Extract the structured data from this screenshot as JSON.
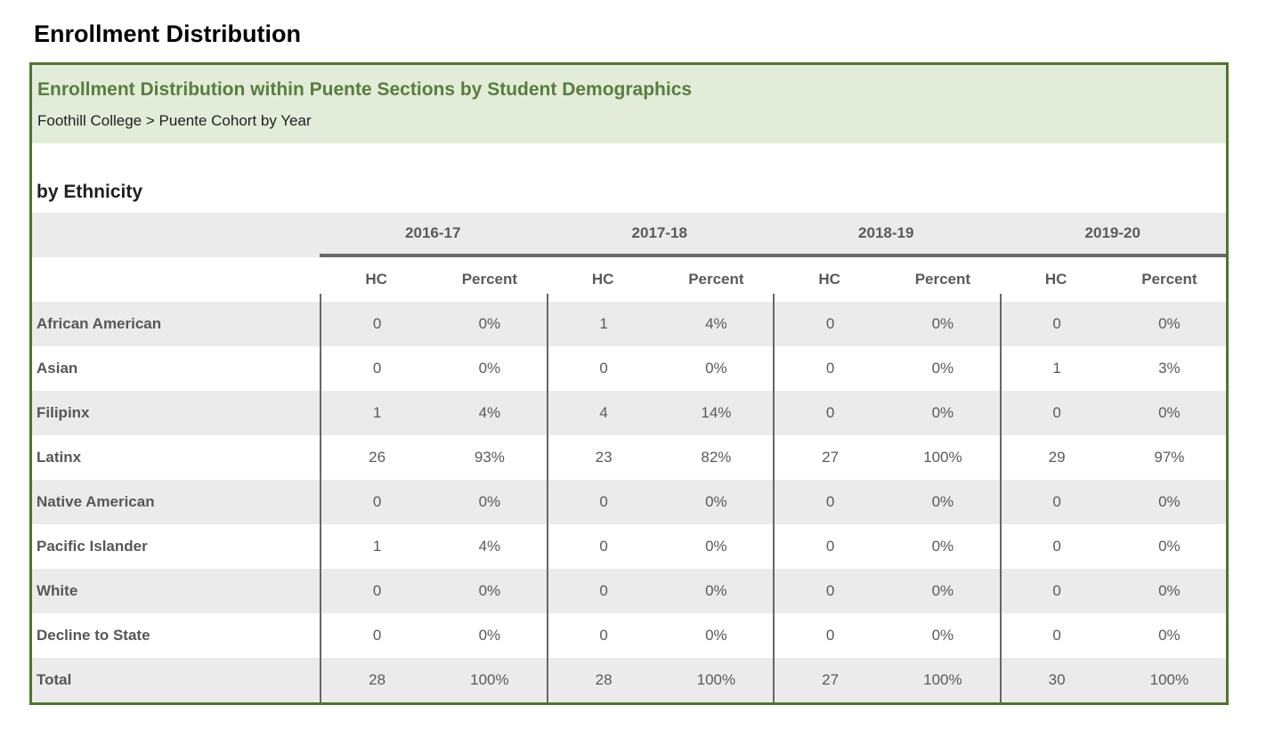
{
  "page_title": "Enrollment Distribution",
  "report": {
    "title": "Enrollment Distribution within Puente Sections by Student Demographics",
    "breadcrumb": "Foothill College > Puente Cohort by Year",
    "section_title": "by Ethnicity"
  },
  "table": {
    "year_groups": [
      "2016-17",
      "2017-18",
      "2018-19",
      "2019-20"
    ],
    "sub_headers": [
      "HC",
      "Percent"
    ],
    "rows": [
      {
        "label": "African American",
        "values": [
          "0",
          "0%",
          "1",
          "4%",
          "0",
          "0%",
          "0",
          "0%"
        ]
      },
      {
        "label": "Asian",
        "values": [
          "0",
          "0%",
          "0",
          "0%",
          "0",
          "0%",
          "1",
          "3%"
        ]
      },
      {
        "label": "Filipinx",
        "values": [
          "1",
          "4%",
          "4",
          "14%",
          "0",
          "0%",
          "0",
          "0%"
        ]
      },
      {
        "label": "Latinx",
        "values": [
          "26",
          "93%",
          "23",
          "82%",
          "27",
          "100%",
          "29",
          "97%"
        ]
      },
      {
        "label": "Native American",
        "values": [
          "0",
          "0%",
          "0",
          "0%",
          "0",
          "0%",
          "0",
          "0%"
        ]
      },
      {
        "label": "Pacific Islander",
        "values": [
          "1",
          "4%",
          "0",
          "0%",
          "0",
          "0%",
          "0",
          "0%"
        ]
      },
      {
        "label": "White",
        "values": [
          "0",
          "0%",
          "0",
          "0%",
          "0",
          "0%",
          "0",
          "0%"
        ]
      },
      {
        "label": "Decline to State",
        "values": [
          "0",
          "0%",
          "0",
          "0%",
          "0",
          "0%",
          "0",
          "0%"
        ]
      },
      {
        "label": "Total",
        "values": [
          "28",
          "100%",
          "28",
          "100%",
          "27",
          "100%",
          "30",
          "100%"
        ]
      }
    ]
  },
  "colors": {
    "accent_border_green": "#50752e",
    "header_band_green": "#e3ecd8",
    "header_title_green": "#587d3e",
    "stripe_gray": "#ebebeb",
    "divider_gray": "#666666",
    "table_text_gray": "#5a5a5a"
  }
}
